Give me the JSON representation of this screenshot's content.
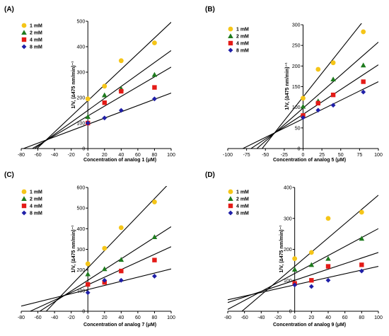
{
  "colors": {
    "1 mM": "#F5C518",
    "2 mM": "#1E7B1E",
    "4 mM": "#E41B17",
    "8 mM": "#1F1FA8",
    "axis": "#000000",
    "fit_line": "#000000"
  },
  "markers": {
    "1 mM": "circle",
    "2 mM": "triangle",
    "4 mM": "square",
    "8 mM": "diamond"
  },
  "chart_data": [
    {
      "panel": "(A)",
      "type": "scatter",
      "xlabel": "Concentration of analog 1 (μM)",
      "ylabel": "1/V, (∆475 nm/min)⁻¹",
      "xlim": [
        -80,
        100
      ],
      "ylim": [
        0,
        500
      ],
      "xticks": [
        -80,
        -60,
        -40,
        -20,
        0,
        20,
        40,
        60,
        80,
        100
      ],
      "yticks": [
        0,
        100,
        200,
        300,
        400,
        500
      ],
      "legend": [
        "1 mM",
        "2 mM",
        "4 mM",
        "8 mM"
      ],
      "legend_position": "top-left",
      "series": [
        {
          "name": "1 mM",
          "x": [
            0,
            20,
            40,
            80
          ],
          "y": [
            195,
            245,
            345,
            415
          ],
          "fit_line": {
            "slope": 3.08,
            "intercept": 188
          }
        },
        {
          "name": "2 mM",
          "x": [
            0,
            20,
            40,
            80
          ],
          "y": [
            125,
            210,
            235,
            290
          ],
          "fit_line": {
            "slope": 2.35,
            "intercept": 150
          }
        },
        {
          "name": "4 mM",
          "x": [
            0,
            20,
            40,
            80
          ],
          "y": [
            100,
            180,
            225,
            240
          ],
          "fit_line": {
            "slope": 1.92,
            "intercept": 128
          }
        },
        {
          "name": "8 mM",
          "x": [
            0,
            20,
            40,
            80
          ],
          "y": [
            100,
            120,
            150,
            195
          ],
          "fit_line": {
            "slope": 1.23,
            "intercept": 95
          }
        }
      ]
    },
    {
      "panel": "(B)",
      "type": "scatter",
      "xlabel": "Concentration of analog 5 (μM)",
      "ylabel": "1/V, (∆475 nm/min)⁻¹",
      "xlim": [
        -100,
        100
      ],
      "ylim": [
        0,
        300
      ],
      "xticks": [
        -100,
        -75,
        -50,
        -25,
        0,
        25,
        50,
        75,
        100
      ],
      "yticks": [
        0,
        50,
        100,
        150,
        200,
        250,
        300
      ],
      "legend": [
        "1 mM",
        "2 mM",
        "4 mM",
        "8 mM"
      ],
      "legend_position": "top-left",
      "series": [
        {
          "name": "1 mM",
          "x": [
            0,
            20,
            40,
            80
          ],
          "y": [
            122,
            192,
            208,
            283
          ],
          "fit_line": {
            "slope": 2.3,
            "intercept": 125
          }
        },
        {
          "name": "2 mM",
          "x": [
            0,
            20,
            40,
            80
          ],
          "y": [
            102,
            115,
            168,
            202
          ],
          "fit_line": {
            "slope": 1.6,
            "intercept": 98
          }
        },
        {
          "name": "4 mM",
          "x": [
            0,
            20,
            40,
            80
          ],
          "y": [
            80,
            110,
            130,
            162
          ],
          "fit_line": {
            "slope": 1.2,
            "intercept": 83
          }
        },
        {
          "name": "8 mM",
          "x": [
            0,
            20,
            40,
            80
          ],
          "y": [
            75,
            93,
            105,
            137
          ],
          "fit_line": {
            "slope": 0.9,
            "intercept": 72
          }
        }
      ]
    },
    {
      "panel": "(C)",
      "type": "scatter",
      "xlabel": "Concentration of analog 7 (μM)",
      "ylabel": "1/V, (∆475 nm/min)⁻¹",
      "xlim": [
        -80,
        100
      ],
      "ylim": [
        0,
        600
      ],
      "xticks": [
        -80,
        -60,
        -40,
        -20,
        0,
        20,
        40,
        60,
        80,
        100
      ],
      "yticks": [
        0,
        100,
        200,
        300,
        400,
        500,
        600
      ],
      "legend": [
        "1 mM",
        "2 mM",
        "4 mM",
        "8 mM"
      ],
      "legend_position": "top-left",
      "series": [
        {
          "name": "1 mM",
          "x": [
            0,
            20,
            40,
            80
          ],
          "y": [
            230,
            305,
            405,
            530
          ],
          "fit_line": {
            "slope": 4.2,
            "intercept": 210
          }
        },
        {
          "name": "2 mM",
          "x": [
            0,
            20,
            40,
            80
          ],
          "y": [
            180,
            205,
            250,
            360
          ],
          "fit_line": {
            "slope": 2.6,
            "intercept": 150
          }
        },
        {
          "name": "4 mM",
          "x": [
            0,
            20,
            40,
            80
          ],
          "y": [
            130,
            140,
            195,
            248
          ],
          "fit_line": {
            "slope": 1.85,
            "intercept": 128
          }
        },
        {
          "name": "8 mM",
          "x": [
            0,
            20,
            40,
            80
          ],
          "y": [
            90,
            150,
            150,
            170
          ],
          "fit_line": {
            "slope": 1.0,
            "intercept": 105
          }
        }
      ]
    },
    {
      "panel": "(D)",
      "type": "scatter",
      "xlabel": "Concentration of analog 9 (μM)",
      "ylabel": "1/V, (∆475 nm/min)⁻¹",
      "xlim": [
        -80,
        100
      ],
      "ylim": [
        0,
        400
      ],
      "xticks": [
        -80,
        -60,
        -40,
        -20,
        0,
        20,
        40,
        60,
        80,
        100
      ],
      "yticks": [
        0,
        100,
        200,
        300,
        400
      ],
      "legend": [
        "1 mM",
        "2 mM",
        "4 mM",
        "8 mM"
      ],
      "legend_position": "top-left",
      "series": [
        {
          "name": "1 mM",
          "x": [
            0,
            20,
            40,
            80
          ],
          "y": [
            170,
            190,
            300,
            320
          ],
          "fit_line": {
            "slope": 2.3,
            "intercept": 145
          }
        },
        {
          "name": "2 mM",
          "x": [
            0,
            20,
            40,
            80
          ],
          "y": [
            135,
            150,
            170,
            235
          ],
          "fit_line": {
            "slope": 1.45,
            "intercept": 122
          }
        },
        {
          "name": "4 mM",
          "x": [
            0,
            20,
            40,
            80
          ],
          "y": [
            90,
            100,
            145,
            150
          ],
          "fit_line": {
            "slope": 0.9,
            "intercept": 100
          }
        },
        {
          "name": "8 mM",
          "x": [
            0,
            20,
            40,
            80
          ],
          "y": [
            85,
            80,
            100,
            130
          ],
          "fit_line": {
            "slope": 0.6,
            "intercept": 85
          }
        }
      ]
    }
  ]
}
